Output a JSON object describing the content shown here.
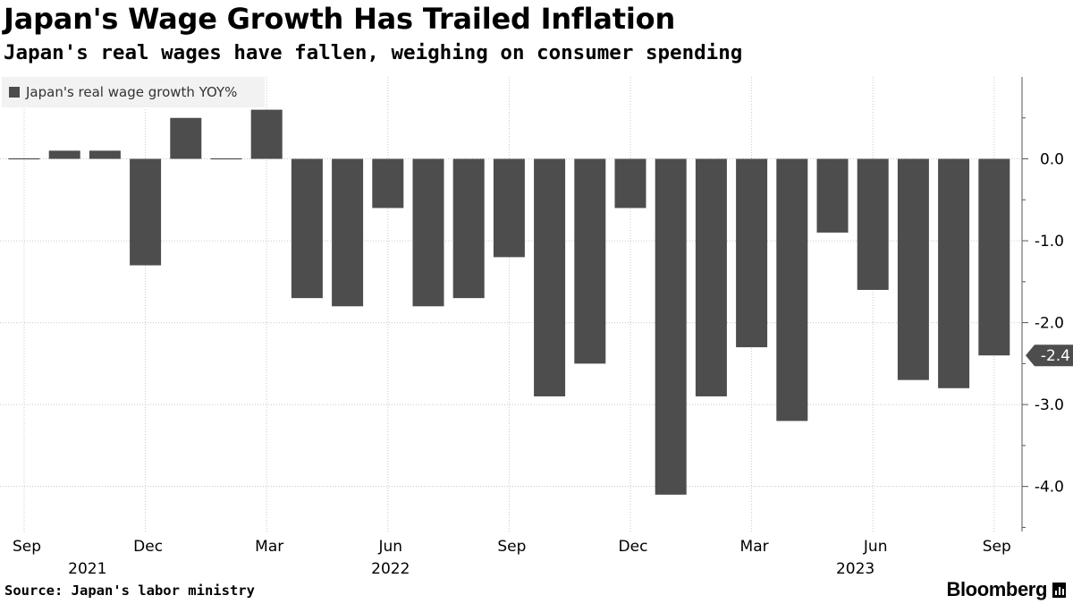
{
  "header": {
    "title": "Japan's Wage Growth Has Trailed Inflation",
    "subtitle": "Japan's real wages have fallen, weighing on consumer spending"
  },
  "legend": {
    "label": "Japan's real wage growth YOY%",
    "color": "#4d4d4d"
  },
  "footer": {
    "source": "Source: Japan's labor ministry",
    "brand": "Bloomberg",
    "brand_icon": "bloomberg-bars-icon"
  },
  "chart_data": {
    "type": "bar",
    "title": "Japan's Wage Growth Has Trailed Inflation",
    "subtitle": "Japan's real wages have fallen, weighing on consumer spending",
    "xlabel": "",
    "ylabel": "",
    "series": [
      {
        "name": "Japan's real wage growth YOY%",
        "color": "#4d4d4d",
        "categories": [
          "Sep 2021",
          "Oct 2021",
          "Nov 2021",
          "Dec 2021",
          "Jan 2022",
          "Feb 2022",
          "Mar 2022",
          "Apr 2022",
          "May 2022",
          "Jun 2022",
          "Jul 2022",
          "Aug 2022",
          "Sep 2022",
          "Oct 2022",
          "Nov 2022",
          "Dec 2022",
          "Jan 2023",
          "Feb 2023",
          "Mar 2023",
          "Apr 2023",
          "May 2023",
          "Jun 2023",
          "Jul 2023",
          "Aug 2023",
          "Sep 2023"
        ],
        "values": [
          0.0,
          0.1,
          0.1,
          -1.3,
          0.5,
          0.0,
          0.6,
          -1.7,
          -1.8,
          -0.6,
          -1.8,
          -1.7,
          -1.2,
          -2.9,
          -2.5,
          -0.6,
          -4.1,
          -2.9,
          -2.3,
          -3.2,
          -0.9,
          -1.6,
          -2.7,
          -2.8,
          -2.4
        ]
      }
    ],
    "x_ticks": [
      {
        "label": "Sep",
        "index": 0
      },
      {
        "label": "Dec",
        "index": 3
      },
      {
        "label": "Mar",
        "index": 6
      },
      {
        "label": "Jun",
        "index": 9
      },
      {
        "label": "Sep",
        "index": 12
      },
      {
        "label": "Dec",
        "index": 15
      },
      {
        "label": "Mar",
        "index": 18
      },
      {
        "label": "Jun",
        "index": 21
      },
      {
        "label": "Sep",
        "index": 24
      }
    ],
    "year_labels": [
      {
        "label": "2021",
        "index": 1.5
      },
      {
        "label": "2022",
        "index": 9
      },
      {
        "label": "2023",
        "index": 20.5
      }
    ],
    "y_ticks": [
      {
        "value": 0.0,
        "label": "0.0"
      },
      {
        "value": -1.0,
        "label": "-1.0"
      },
      {
        "value": -2.0,
        "label": "-2.0"
      },
      {
        "value": -3.0,
        "label": "-3.0"
      },
      {
        "value": -4.0,
        "label": "-4.0"
      }
    ],
    "ylim": [
      -4.55,
      1.0
    ],
    "y_axis_side": "right",
    "grid": true,
    "legend_position": "top-left",
    "last_value_label": {
      "value": -2.4,
      "label": "-2.4"
    }
  }
}
